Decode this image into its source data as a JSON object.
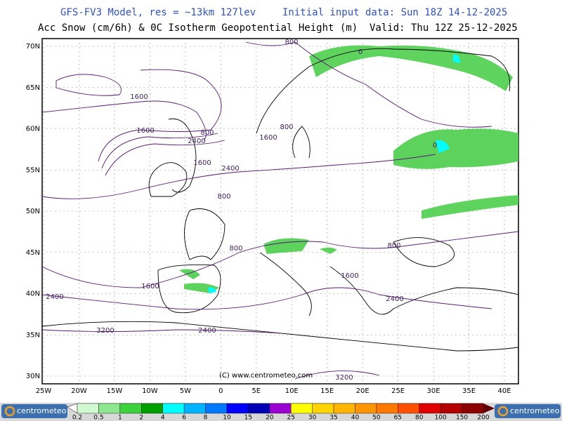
{
  "header": {
    "model": "GFS-FV3 Model, res = ~13km 127lev",
    "init": "Initial input data: Sun 18Z 14-12-2025",
    "field": "Acc Snow (cm/6h) & 0C Isotherm Geopotential Height (m)",
    "valid": "Valid: Thu 12Z 25-12-2025"
  },
  "map": {
    "lat_labels": [
      "70N",
      "65N",
      "60N",
      "55N",
      "50N",
      "45N",
      "40N",
      "35N",
      "30N"
    ],
    "lon_labels": [
      "25W",
      "20W",
      "15W",
      "10W",
      "5W",
      "0",
      "5E",
      "10E",
      "15E",
      "20E",
      "25E",
      "30E",
      "35E",
      "40E"
    ],
    "contour_labels": [
      "800",
      "1600",
      "1600",
      "800",
      "2400",
      "800",
      "1600",
      "1600",
      "2400",
      "800",
      "800",
      "1600",
      "2400",
      "3200",
      "2400",
      "1600",
      "2400",
      "800",
      "0",
      "0",
      "3200"
    ],
    "copyright": "(C) www.centrometeo.com"
  },
  "legend": {
    "labels": [
      "0.2",
      "0.5",
      "1",
      "2",
      "4",
      "6",
      "8",
      "10",
      "15",
      "20",
      "25",
      "30",
      "35",
      "40",
      "50",
      "65",
      "80",
      "100",
      "150",
      "200"
    ],
    "colors": [
      "#d2fad2",
      "#8ee68e",
      "#3cd23c",
      "#00a000",
      "#00ffff",
      "#00b4ff",
      "#0078ff",
      "#0000ff",
      "#0000b4",
      "#9b00d2",
      "#ffff00",
      "#ffd200",
      "#ffb400",
      "#ff9600",
      "#ff7800",
      "#ff5000",
      "#e00000",
      "#b40000",
      "#8c0000",
      "#600000"
    ],
    "brand_left": "centrometeo",
    "brand_right": "centrometeo"
  }
}
